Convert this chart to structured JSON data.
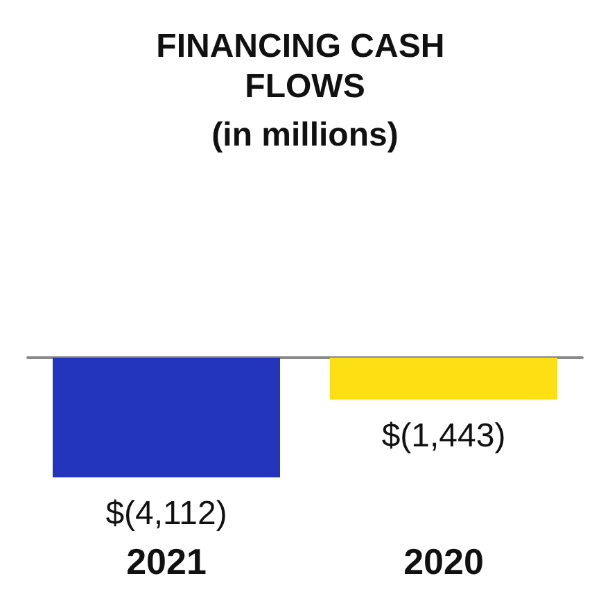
{
  "chart_data": {
    "type": "bar",
    "title": "FINANCING CASH FLOWS",
    "subtitle": "(in millions)",
    "categories": [
      "2021",
      "2020"
    ],
    "values": [
      -4112,
      -1443
    ],
    "colors": [
      "#2335bd",
      "#fde013"
    ],
    "value_labels": [
      "$(4,112)",
      "$(1,443)"
    ]
  }
}
